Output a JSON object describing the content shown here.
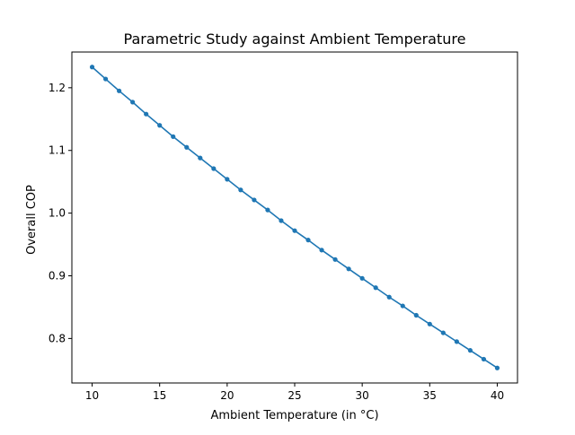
{
  "chart_data": {
    "type": "line",
    "title": "Parametric Study against Ambient Temperature",
    "xlabel": "Ambient Temperature (in °C)",
    "ylabel": "Overall COP",
    "xlim": [
      8.5,
      41.5
    ],
    "ylim": [
      0.729,
      1.257
    ],
    "xticks": [
      10,
      15,
      20,
      25,
      30,
      35,
      40
    ],
    "yticks": [
      0.8,
      0.9,
      1.0,
      1.1,
      1.2
    ],
    "grid": false,
    "series": [
      {
        "color": "#1f77b4",
        "marker": "circle",
        "x": [
          10,
          11,
          12,
          13,
          14,
          15,
          16,
          17,
          18,
          19,
          20,
          21,
          22,
          23,
          24,
          25,
          26,
          27,
          28,
          29,
          30,
          31,
          32,
          33,
          34,
          35,
          36,
          37,
          38,
          39,
          40
        ],
        "y": [
          1.233,
          1.214,
          1.195,
          1.177,
          1.158,
          1.14,
          1.122,
          1.105,
          1.088,
          1.071,
          1.054,
          1.037,
          1.021,
          1.005,
          0.988,
          0.972,
          0.957,
          0.941,
          0.926,
          0.911,
          0.896,
          0.881,
          0.866,
          0.852,
          0.837,
          0.823,
          0.809,
          0.795,
          0.781,
          0.767,
          0.753
        ]
      }
    ]
  }
}
